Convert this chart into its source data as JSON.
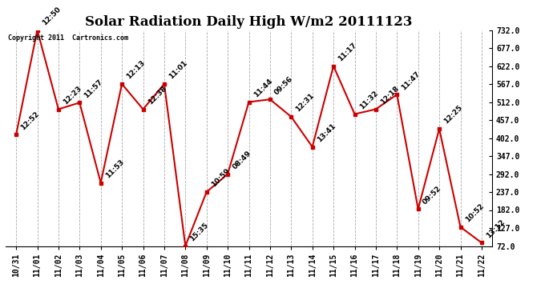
{
  "title": "Solar Radiation Daily High W/m2 20111123",
  "copyright": "Copyright 2011  Cartronics.com",
  "dates": [
    "10/31",
    "11/01",
    "11/02",
    "11/03",
    "11/04",
    "11/05",
    "11/06",
    "11/07",
    "11/08",
    "11/09",
    "11/10",
    "11/11",
    "11/12",
    "11/13",
    "11/14",
    "11/15",
    "11/16",
    "11/17",
    "11/18",
    "11/19",
    "11/20",
    "11/21",
    "11/22"
  ],
  "values": [
    412,
    732,
    490,
    510,
    265,
    567,
    490,
    567,
    72,
    237,
    292,
    512,
    520,
    467,
    375,
    622,
    475,
    490,
    535,
    185,
    430,
    130,
    82
  ],
  "labels": [
    "12:52",
    "12:50",
    "12:23",
    "11:57",
    "11:53",
    "12:13",
    "12:38",
    "11:01",
    "15:35",
    "10:59",
    "08:49",
    "11:44",
    "09:56",
    "12:31",
    "13:41",
    "11:17",
    "11:32",
    "12:18",
    "11:47",
    "09:52",
    "12:25",
    "10:52",
    "13:12"
  ],
  "yticks": [
    72.0,
    127.0,
    182.0,
    237.0,
    292.0,
    347.0,
    402.0,
    457.0,
    512.0,
    567.0,
    622.0,
    677.0,
    732.0
  ],
  "line_color": "#cc0000",
  "marker_color": "#cc0000",
  "bg_color": "#ffffff",
  "grid_color": "#aaaaaa",
  "title_fontsize": 12,
  "label_fontsize": 6.5,
  "tick_fontsize": 7,
  "ymin": 72,
  "ymax": 732
}
